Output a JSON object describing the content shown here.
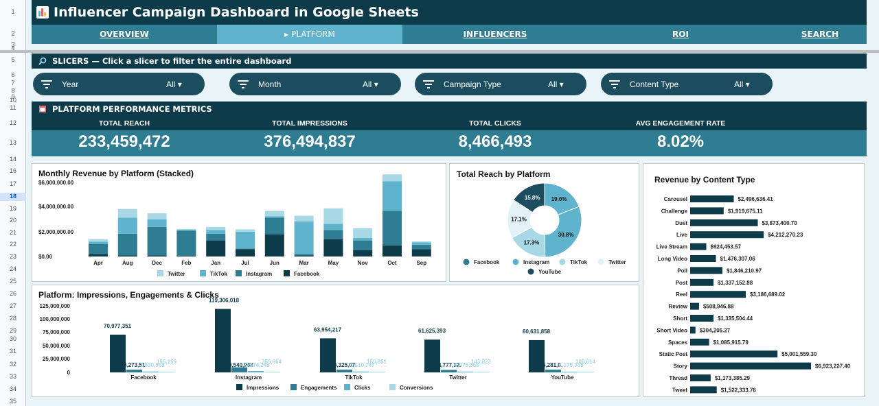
{
  "row_numbers": [
    {
      "n": "1",
      "y": 18
    },
    {
      "n": "2",
      "y": 50
    },
    {
      "n": "3",
      "y": 66
    },
    {
      "n": "4",
      "y": 71
    },
    {
      "n": "5",
      "y": 88
    },
    {
      "n": "6",
      "y": 110
    },
    {
      "n": "7",
      "y": 122
    },
    {
      "n": "8",
      "y": 133
    },
    {
      "n": "9",
      "y": 142
    },
    {
      "n": "10",
      "y": 147
    },
    {
      "n": "11",
      "y": 158
    },
    {
      "n": "12",
      "y": 180
    },
    {
      "n": "13",
      "y": 209
    },
    {
      "n": "14",
      "y": 233
    },
    {
      "n": "16",
      "y": 250
    },
    {
      "n": "17",
      "y": 269
    },
    {
      "n": "18",
      "y": 287,
      "sel": true
    },
    {
      "n": "19",
      "y": 305
    },
    {
      "n": "20",
      "y": 322
    },
    {
      "n": "21",
      "y": 340
    },
    {
      "n": "22",
      "y": 357
    },
    {
      "n": "23",
      "y": 375
    },
    {
      "n": "24",
      "y": 393
    },
    {
      "n": "25",
      "y": 411
    },
    {
      "n": "26",
      "y": 429
    },
    {
      "n": "27",
      "y": 447
    },
    {
      "n": "28",
      "y": 465
    },
    {
      "n": "29",
      "y": 483
    },
    {
      "n": "30",
      "y": 495
    },
    {
      "n": "31",
      "y": 513
    },
    {
      "n": "32",
      "y": 532
    },
    {
      "n": "33",
      "y": 550
    },
    {
      "n": "34",
      "y": 568
    },
    {
      "n": "35",
      "y": 586
    }
  ],
  "title": "Influencer Campaign Dashboard in Google Sheets",
  "nav": [
    "OVERVIEW",
    "▸ PLATFORM",
    "INFLUENCERS",
    "ROI",
    "SEARCH"
  ],
  "slicers_header": "SLICERS — Click a slicer to filter the entire dashboard",
  "slicers": [
    {
      "label": "Year",
      "value": "All"
    },
    {
      "label": "Month",
      "value": "All"
    },
    {
      "label": "Campaign Type",
      "value": "All"
    },
    {
      "label": "Content Type",
      "value": "All"
    }
  ],
  "metrics_header": "PLATFORM PERFORMANCE METRICS",
  "metrics": [
    {
      "label": "TOTAL REACH",
      "value": "233,459,472"
    },
    {
      "label": "TOTAL IMPRESSIONS",
      "value": "376,494,837"
    },
    {
      "label": "TOTAL CLICKS",
      "value": "8,466,493"
    },
    {
      "label": "AVG ENGAGEMENT RATE",
      "value": "8.02%"
    }
  ],
  "colors": {
    "facebook": "#0e3b4a",
    "instagram": "#2f7d92",
    "tiktok": "#5fb3cc",
    "twitter": "#a8d8e6"
  },
  "chart_data": [
    {
      "type": "bar",
      "title": "Monthly Revenue by Platform (Stacked)",
      "categories": [
        "Apr",
        "Aug",
        "Dec",
        "Feb",
        "Jan",
        "Jul",
        "Jun",
        "Mar",
        "May",
        "Nov",
        "Oct",
        "Sep"
      ],
      "y_ticks": [
        "$6,000,000.00",
        "$4,000,000.00",
        "$2,000,000.00",
        "$0.00"
      ],
      "ylim": [
        0,
        6000000
      ],
      "series": [
        {
          "name": "Facebook",
          "values": [
            200000,
            100000,
            100000,
            50000,
            1300000,
            600000,
            1800000,
            100000,
            1400000,
            500000,
            900000,
            600000
          ]
        },
        {
          "name": "Instagram",
          "values": [
            800000,
            1750000,
            2300000,
            2050000,
            550000,
            50000,
            1350000,
            100000,
            750000,
            800000,
            2800000,
            350000
          ]
        },
        {
          "name": "TikTok",
          "values": [
            200000,
            1300000,
            600000,
            60000,
            300000,
            1350000,
            100000,
            2650000,
            500000,
            200000,
            2400000,
            200000
          ]
        },
        {
          "name": "Twitter",
          "values": [
            200000,
            700000,
            500000,
            70000,
            250000,
            200000,
            450000,
            450000,
            1250000,
            800000,
            550000,
            70000
          ]
        }
      ],
      "legend": [
        "Twitter",
        "TikTok",
        "Instagram",
        "Facebook"
      ]
    },
    {
      "type": "pie",
      "title": "Total Reach by Platform",
      "slices": [
        {
          "name": "Facebook",
          "value": 19.0,
          "label": "19.0%"
        },
        {
          "name": "Instagram",
          "value": 30.8,
          "label": "30.8%"
        },
        {
          "name": "TikTok",
          "value": 17.3,
          "label": "17.3%"
        },
        {
          "name": "Twitter",
          "value": 17.1,
          "label": "17.1%"
        },
        {
          "name": "YouTube",
          "value": 15.8,
          "label": "15.8%"
        }
      ],
      "legend": [
        "Facebook",
        "Instagram",
        "TikTok",
        "Twitter",
        "YouTube"
      ]
    },
    {
      "type": "bar",
      "title": "Revenue by Content Type",
      "orientation": "horizontal",
      "categories": [
        "Carousel",
        "Challenge",
        "Duet",
        "Live",
        "Live Stream",
        "Long Video",
        "Poll",
        "Post",
        "Reel",
        "Review",
        "Short",
        "Short Video",
        "Spaces",
        "Static Post",
        "Story",
        "Thread",
        "Tweet"
      ],
      "values": [
        2496636.41,
        1919675.11,
        3873400.7,
        4212270.23,
        924453.57,
        1476307.06,
        1846210.97,
        1337152.88,
        3186689.02,
        508946.88,
        1335504.44,
        304205.27,
        1085915.79,
        5001559.3,
        6923227.4,
        1173385.29,
        1522333.76
      ],
      "labels": [
        "$2,496,636.41",
        "$1,919,675.11",
        "$3,873,400.70",
        "$4,212,270.23",
        "$924,453.57",
        "$1,476,307.06",
        "$1,846,210.97",
        "$1,337,152.88",
        "$3,186,689.02",
        "$508,946.88",
        "$1,335,504.44",
        "$304,205.27",
        "$1,085,915.79",
        "$5,001,559.30",
        "$6,923,227.40",
        "$1,173,385.29",
        "$1,522,333.76"
      ]
    },
    {
      "type": "bar",
      "title": "Platform: Impressions, Engagements & Clicks",
      "categories": [
        "Facebook",
        "Instagram",
        "TikTok",
        "Twitter",
        "YouTube"
      ],
      "y_ticks": [
        "125,000,000",
        "100,000,000",
        "75,000,000",
        "50,000,000",
        "25,000,000",
        "0"
      ],
      "ylim": [
        0,
        125000000
      ],
      "series": [
        {
          "name": "Impressions",
          "values": [
            70977351,
            119306018,
            63954217,
            61625393,
            60631858
          ],
          "labels": [
            "70,977,351",
            "119,306,018",
            "63,954,217",
            "61,625,393",
            "60,631,858"
          ]
        },
        {
          "name": "Engagements",
          "values": [
            5273000,
            9540938,
            5325000,
            4777000,
            5281000
          ],
          "labels": [
            "5,273,51.",
            "9,540,938",
            "5,325,07.",
            "4,777,12.",
            "5,281,0."
          ]
        },
        {
          "name": "Clicks",
          "values": [
            1630559,
            2574245,
            1610747,
            1475568,
            1175388
          ],
          "labels": [
            "1,630,559",
            "2,574,245",
            "1,610,747",
            "1,475,568",
            "1,175,388"
          ]
        },
        {
          "name": "Conversions",
          "values": [
            195159,
            355664,
            180851,
            143823,
            108614
          ],
          "labels": [
            "195,159",
            "355,664",
            "180,851",
            "143,823",
            "108,614"
          ]
        }
      ],
      "legend": [
        "Impressions",
        "Engagements",
        "Clicks",
        "Conversions"
      ]
    }
  ]
}
